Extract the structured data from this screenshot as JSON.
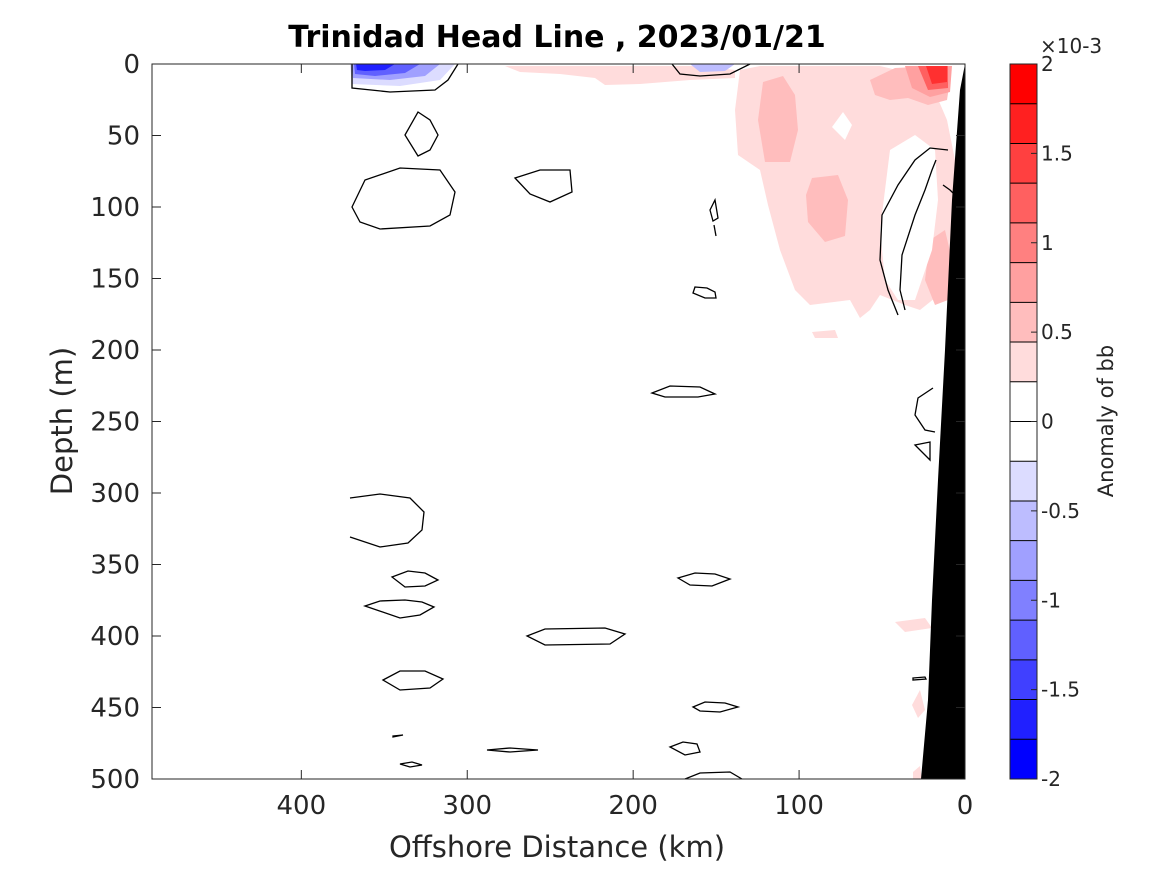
{
  "chart_data": {
    "type": "heatmap",
    "title": "Trinidad Head Line , 2023/01/21",
    "xlabel": "Offshore Distance (km)",
    "ylabel": "Depth (m)",
    "xlim": [
      490,
      0
    ],
    "ylim": [
      0,
      500
    ],
    "x_reversed": true,
    "y_reversed": true,
    "xticks": [
      400,
      300,
      200,
      100,
      0
    ],
    "xtick_labels": [
      "400",
      "300",
      "200",
      "100",
      "0"
    ],
    "yticks": [
      0,
      50,
      100,
      150,
      200,
      250,
      300,
      350,
      400,
      450,
      500
    ],
    "ytick_labels": [
      "0",
      "50",
      "100",
      "150",
      "200",
      "250",
      "300",
      "350",
      "400",
      "450",
      "500"
    ],
    "colorbar": {
      "label": "Anomaly of bb",
      "exponent": "×10-3",
      "range": [
        -2,
        2
      ],
      "ticks": [
        2,
        1.5,
        1,
        0.5,
        0,
        -0.5,
        -1,
        -1.5,
        -2
      ],
      "tick_labels": [
        "2",
        "1.5",
        "1",
        "0.5",
        "0",
        "-0.5",
        "-1",
        "-1.5",
        "-2"
      ],
      "levels": [
        -2,
        -1.75,
        -1.5,
        -1.25,
        -1,
        -0.75,
        -0.5,
        -0.25,
        0.25,
        0.5,
        0.75,
        1,
        1.25,
        1.5,
        1.75,
        2
      ],
      "colors": [
        "#0000ff",
        "#2020ff",
        "#4040ff",
        "#6060ff",
        "#8080ff",
        "#a0a0ff",
        "#bdbdff",
        "#dcdcff",
        "#ffffff",
        "#ffffff",
        "#ffdcdc",
        "#ffbdbd",
        "#ffa0a0",
        "#ff8080",
        "#ff6060",
        "#ff4040",
        "#ff2020",
        "#ff0000"
      ]
    },
    "anomaly_regions": [
      {
        "sign": "positive",
        "level": 0.5,
        "location": "nearshore 0-160 km, 0-200 m"
      },
      {
        "sign": "positive",
        "level": 1.0,
        "location": "120-80 km, 20-120 m"
      },
      {
        "sign": "positive",
        "level": 2.0,
        "location": "near 10 km, surface"
      },
      {
        "sign": "negative",
        "level": -1.5,
        "location": "near 360 km, surface"
      }
    ],
    "seafloor": {
      "description": "bathymetry mask",
      "color": "#000000"
    },
    "contour_color": "#000000"
  }
}
